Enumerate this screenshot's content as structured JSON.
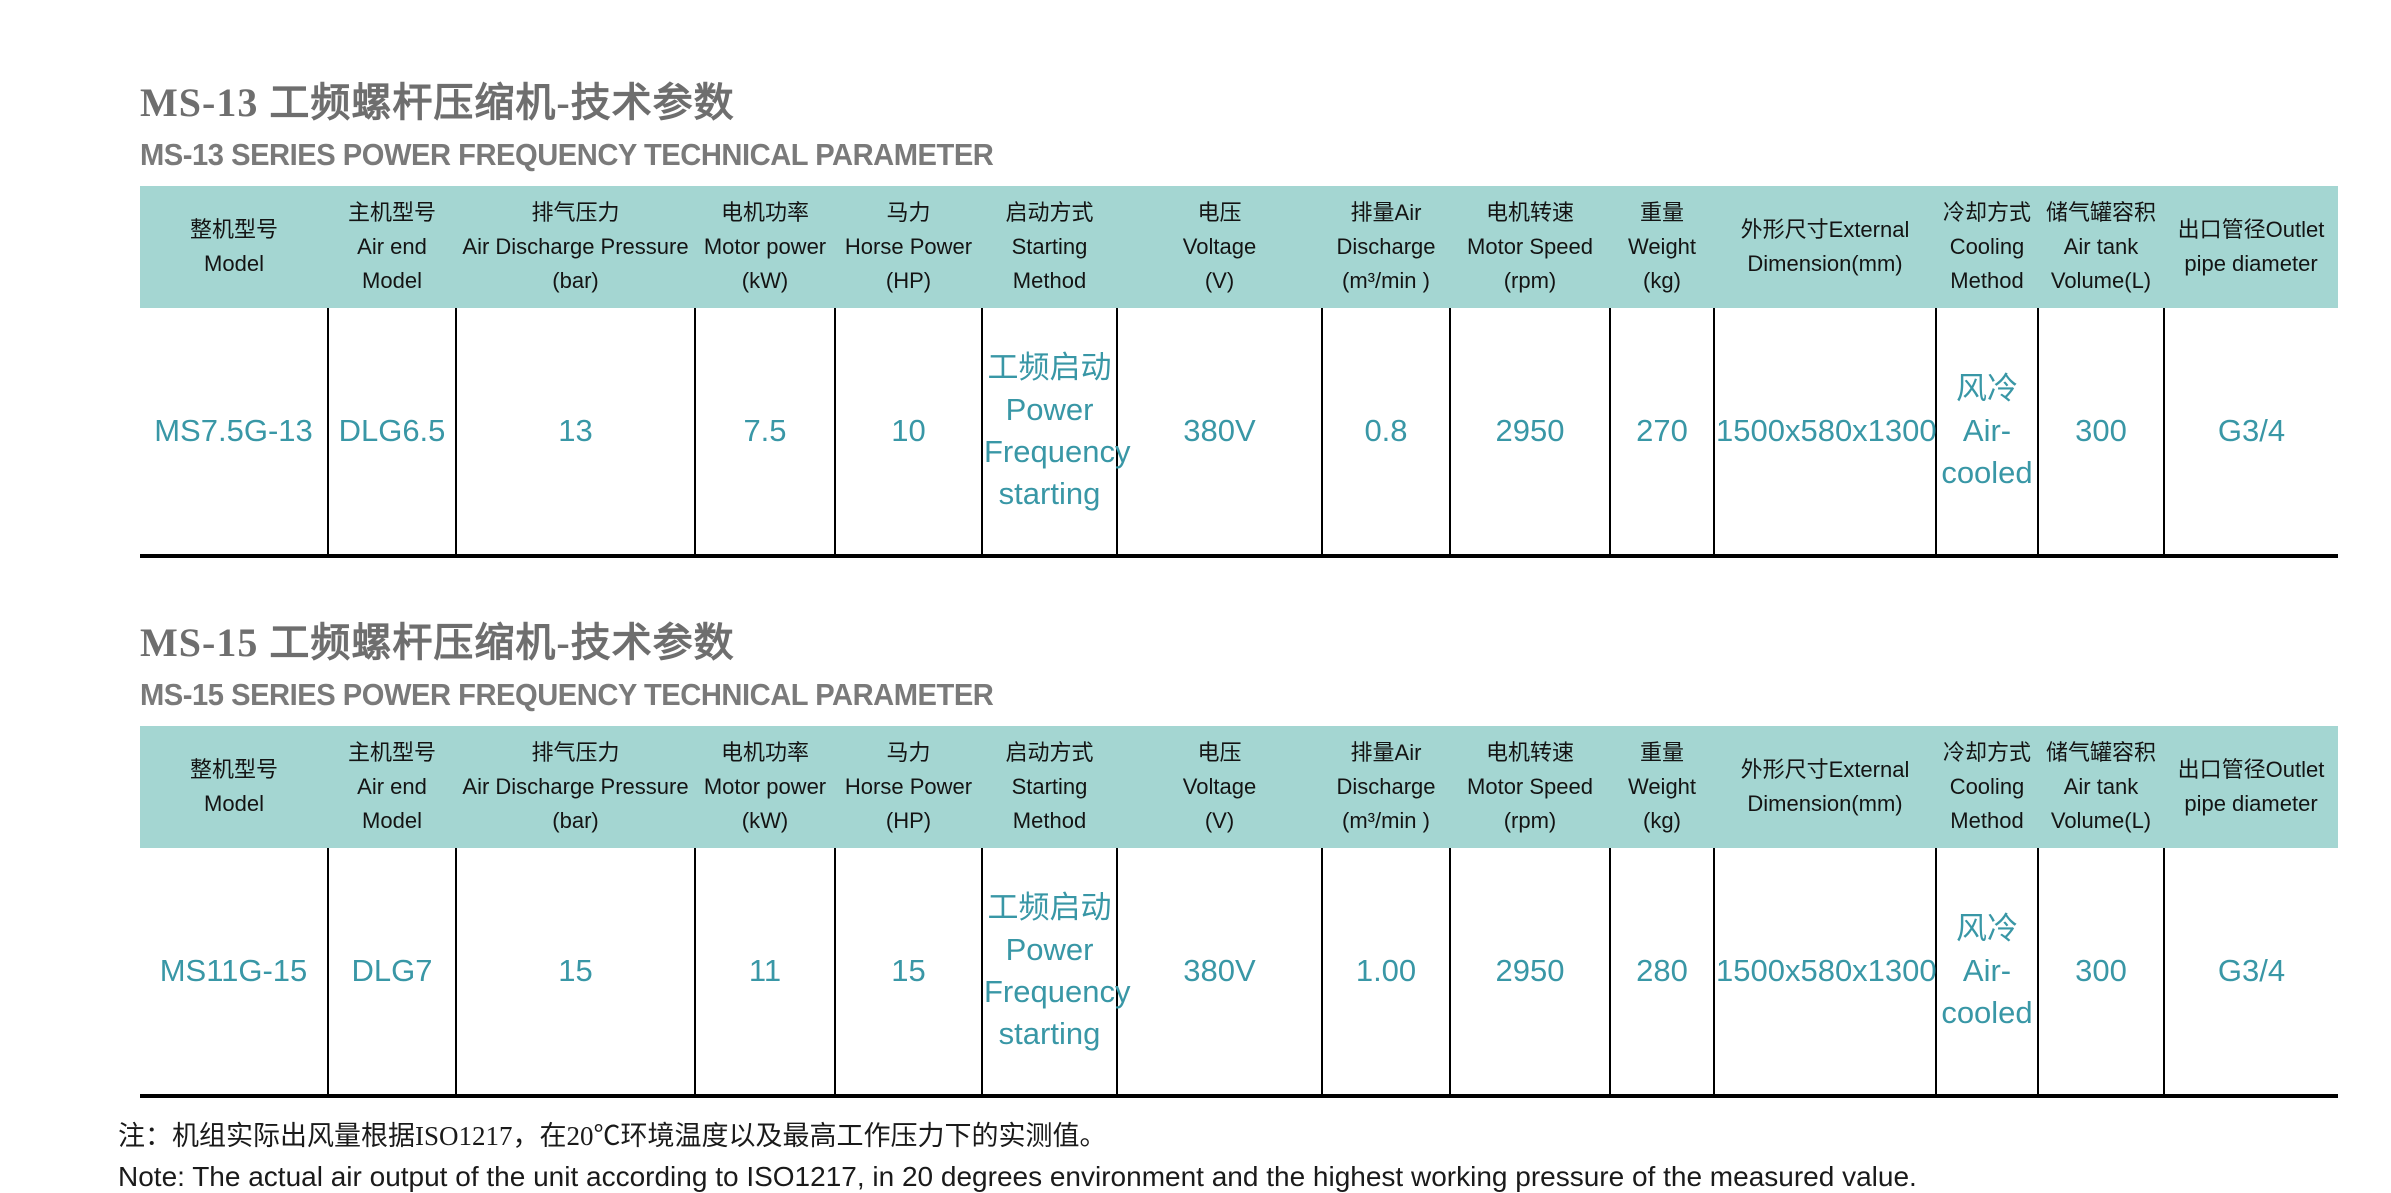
{
  "colors": {
    "header_bg": "#a4d6d2",
    "data_text": "#3997a6",
    "title_gray": "#6e6e6e",
    "border": "#000000"
  },
  "sections": [
    {
      "title_zh": "MS-13 工频螺杆压缩机-技术参数",
      "title_en": "MS-13 SERIES POWER FREQUENCY TECHNICAL PARAMETER",
      "table": {
        "headers": [
          "整机型号\nModel",
          "主机型号\nAir end\nModel",
          "排气压力\nAir Discharge Pressure\n(bar)",
          "电机功率\nMotor power\n(kW)",
          "马力\nHorse Power\n(HP)",
          "启动方式\nStarting\nMethod",
          "电压\nVoltage\n(V)",
          "排量Air\nDischarge\n(m³/min )",
          "电机转速\nMotor Speed\n(rpm)",
          "重量\nWeight\n(kg)",
          "外形尺寸External\nDimension(mm)",
          "冷却方式\nCooling\nMethod",
          "储气罐容积\nAir tank\nVolume(L)",
          "出口管径Outlet\npipe diameter"
        ],
        "row": [
          "MS7.5G-13",
          "DLG6.5",
          "13",
          "7.5",
          "10",
          "工频启动\nPower\nFrequency\nstarting",
          "380V",
          "0.8",
          "2950",
          "270",
          "1500x580x1300",
          "风冷\nAir-\ncooled",
          "300",
          "G3/4"
        ]
      }
    },
    {
      "title_zh": "MS-15 工频螺杆压缩机-技术参数",
      "title_en": "MS-15 SERIES POWER FREQUENCY TECHNICAL PARAMETER",
      "table": {
        "headers": [
          "整机型号\nModel",
          "主机型号\nAir end\nModel",
          "排气压力\nAir Discharge Pressure\n(bar)",
          "电机功率\nMotor power\n(kW)",
          "马力\nHorse Power\n(HP)",
          "启动方式\nStarting\nMethod",
          "电压\nVoltage\n(V)",
          "排量Air\nDischarge\n(m³/min )",
          "电机转速\nMotor Speed\n(rpm)",
          "重量\nWeight\n(kg)",
          "外形尺寸External\nDimension(mm)",
          "冷却方式\nCooling\nMethod",
          "储气罐容积\nAir tank\nVolume(L)",
          "出口管径Outlet\npipe diameter"
        ],
        "row": [
          "MS11G-15",
          "DLG7",
          "15",
          "11",
          "15",
          "工频启动\nPower\nFrequency\nstarting",
          "380V",
          "1.00",
          "2950",
          "280",
          "1500x580x1300",
          "风冷\nAir-\ncooled",
          "300",
          "G3/4"
        ]
      }
    }
  ],
  "note": {
    "zh": "注：机组实际出风量根据ISO1217，在20℃环境温度以及最高工作压力下的实测值。",
    "en": "Note: The actual air output of the unit according to ISO1217, in 20 degrees environment and the highest working pressure of the measured value."
  }
}
